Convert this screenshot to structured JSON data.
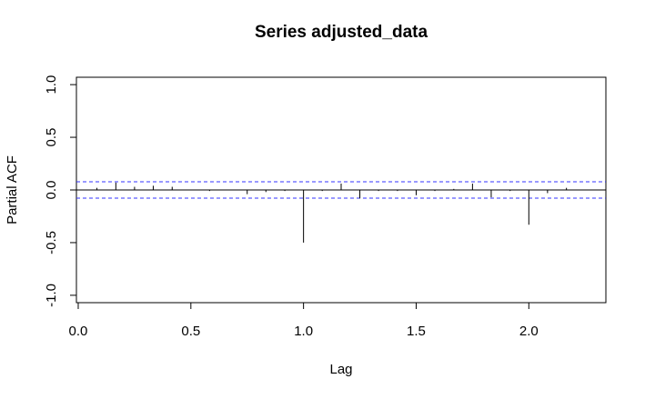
{
  "chart_data": {
    "type": "spike",
    "title": "Series  adjusted_data",
    "x_label": "Lag",
    "y_label": "Partial ACF",
    "x": [
      0.083,
      0.167,
      0.25,
      0.333,
      0.417,
      0.5,
      0.583,
      0.667,
      0.75,
      0.833,
      0.917,
      1.0,
      1.083,
      1.167,
      1.25,
      1.333,
      1.417,
      1.5,
      1.583,
      1.667,
      1.75,
      1.833,
      1.917,
      2.0,
      2.083,
      2.167,
      2.25,
      2.333
    ],
    "values": [
      0.02,
      0.07,
      0.03,
      0.04,
      0.03,
      0.0,
      -0.01,
      0.0,
      -0.04,
      -0.02,
      -0.01,
      -0.5,
      -0.01,
      0.06,
      -0.08,
      -0.01,
      -0.01,
      -0.05,
      -0.01,
      0.01,
      0.06,
      -0.07,
      -0.01,
      -0.33,
      -0.03,
      0.02,
      0.0,
      0.0
    ],
    "color": "#000000",
    "ci": 0.078,
    "ci_color": "#3333ff",
    "xlim": [
      -0.008,
      2.342
    ],
    "ylim": [
      -1.07,
      1.07
    ],
    "xticks": [
      {
        "value": 0,
        "label": "0.0"
      },
      {
        "value": 0.5,
        "label": "0.5"
      },
      {
        "value": 1,
        "label": "1.0"
      },
      {
        "value": 1.5,
        "label": "1.5"
      },
      {
        "value": 2,
        "label": "2.0"
      }
    ],
    "yticks": [
      {
        "value": -1,
        "label": "-1.0"
      },
      {
        "value": -0.5,
        "label": "-0.5"
      },
      {
        "value": 0,
        "label": "0.0"
      },
      {
        "value": 0.5,
        "label": "0.5"
      },
      {
        "value": 1,
        "label": "1.0"
      }
    ]
  }
}
